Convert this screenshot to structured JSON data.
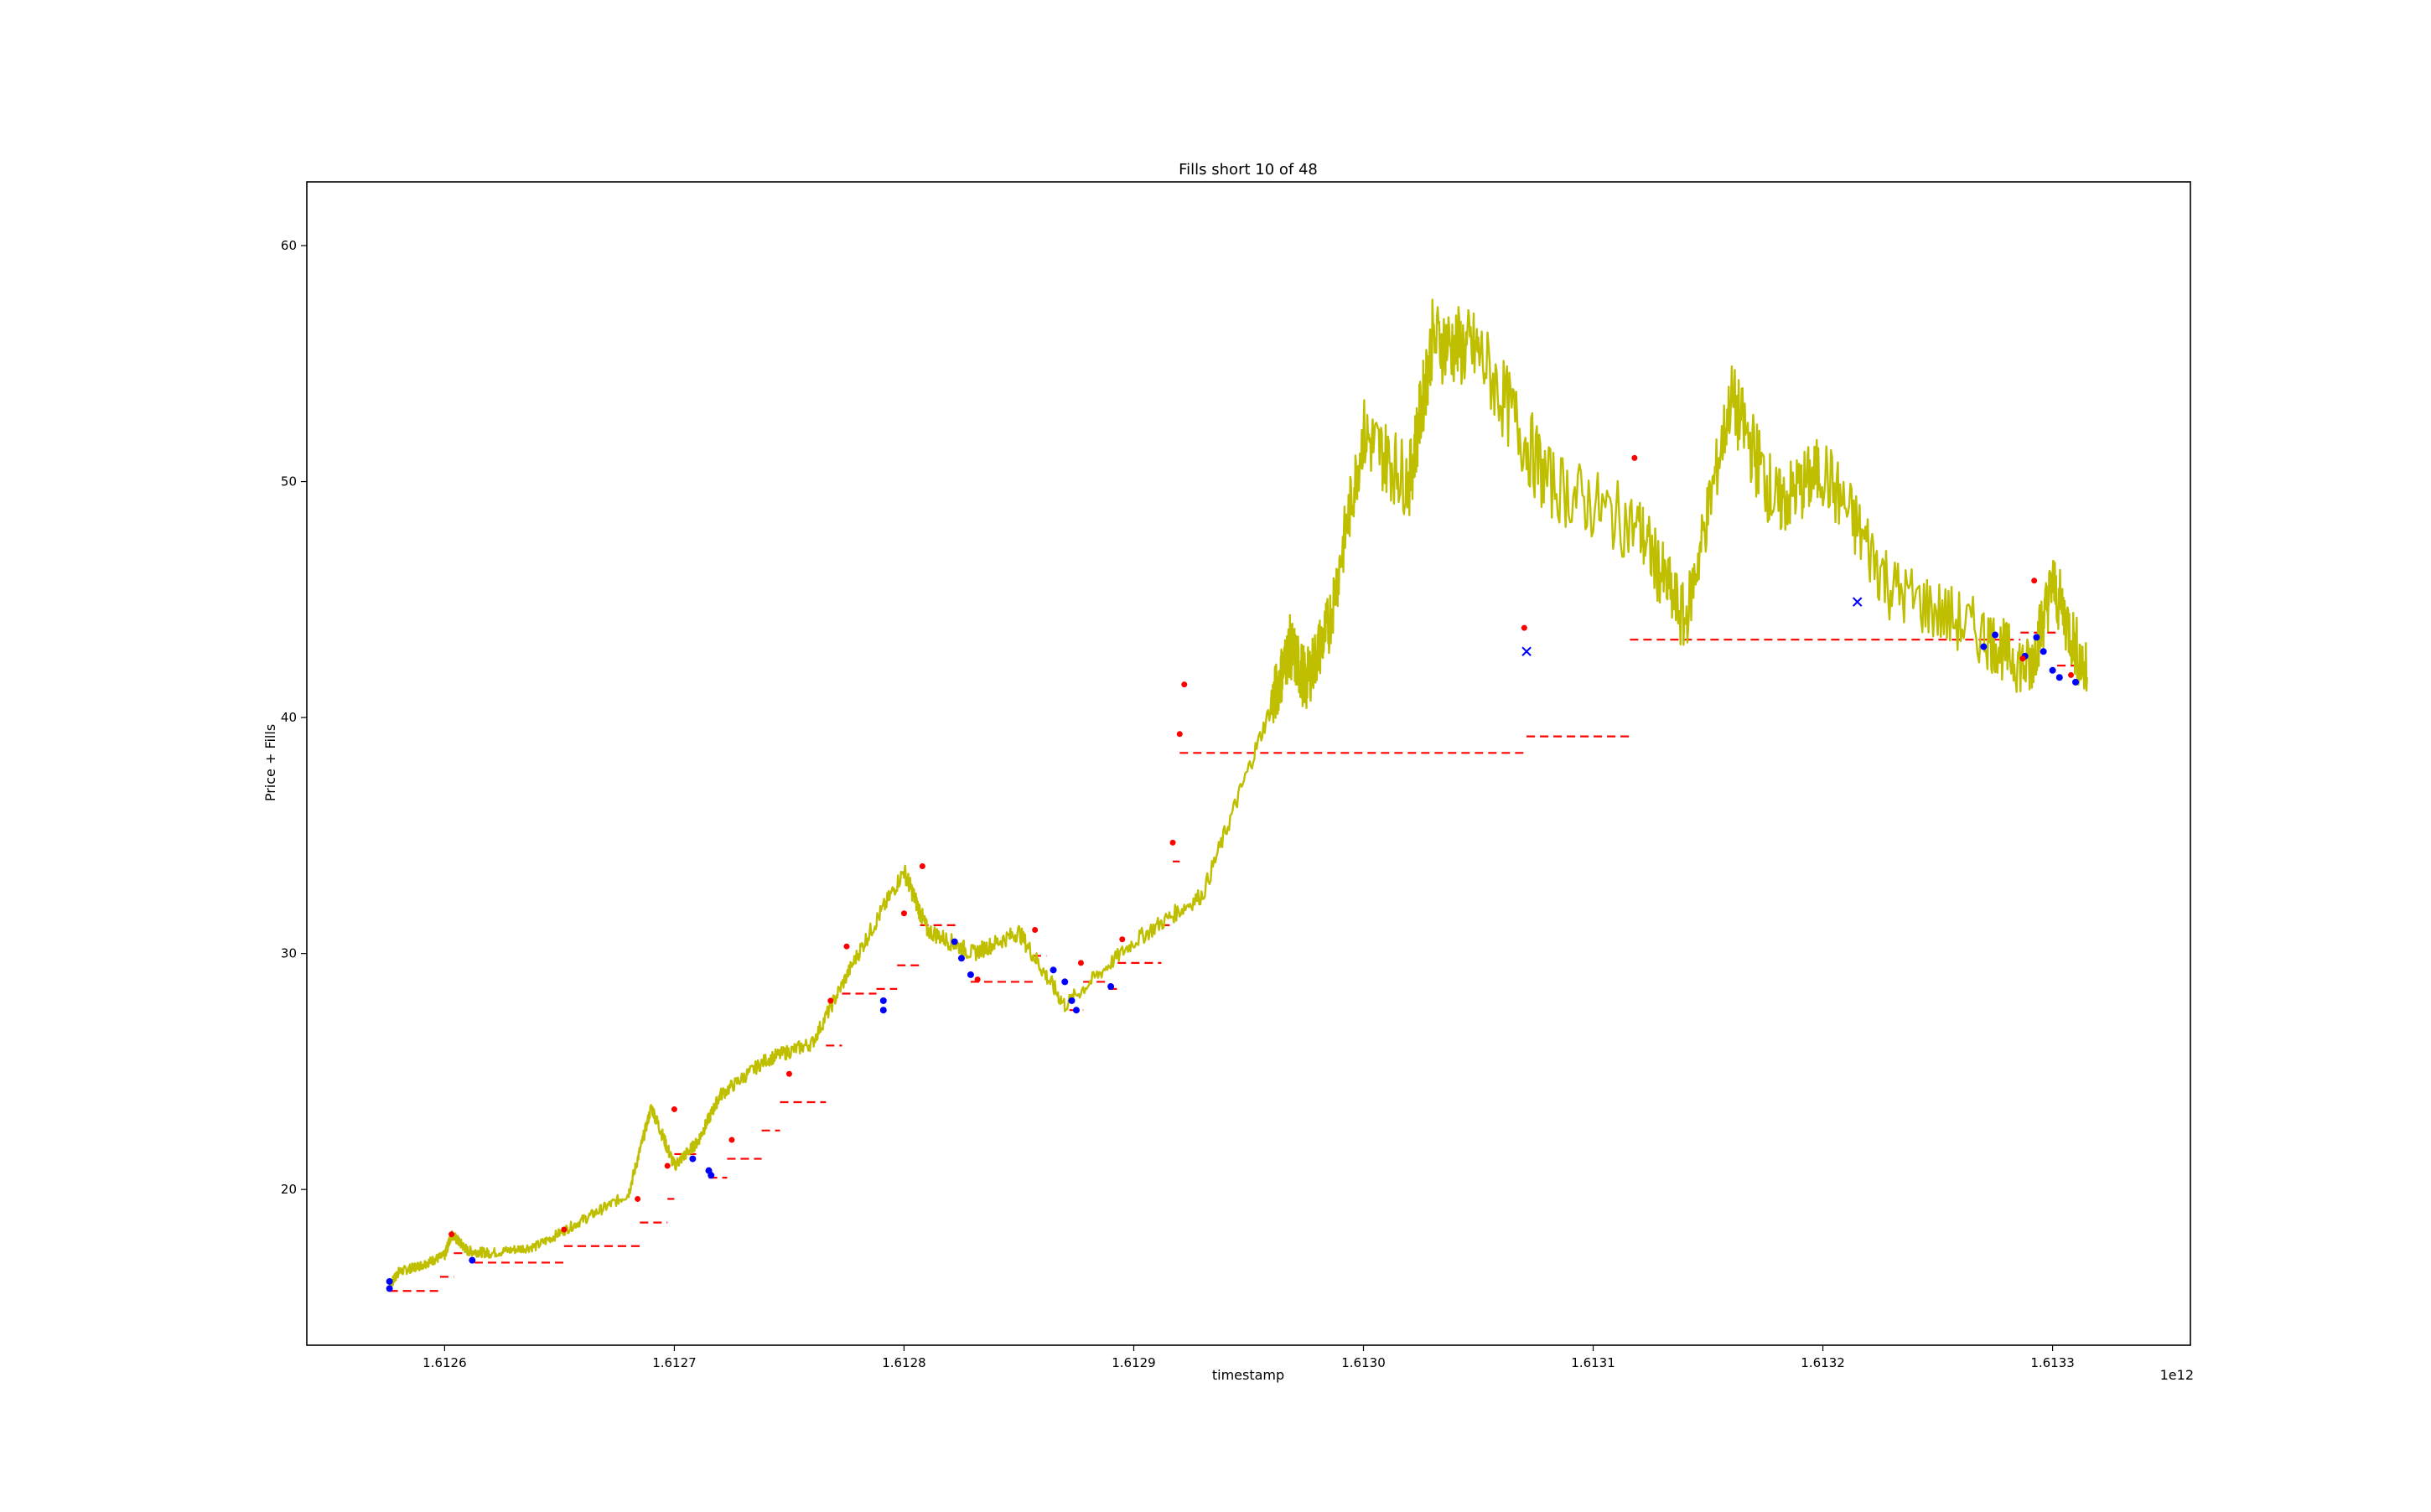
{
  "chart_data": {
    "type": "line",
    "title": "Fills short 10 of 48",
    "xlabel": "timestamp",
    "ylabel": "Price + Fills",
    "x_offset_label": "1e12",
    "x_scale": 1000000000000.0,
    "xlim": [
      1612540000000.0,
      1613360000000.0
    ],
    "ylim": [
      13.4,
      62.7
    ],
    "grid": false,
    "legend": "none",
    "x_ticks": [
      {
        "value": 1612600000000.0,
        "label": "1.6126"
      },
      {
        "value": 1612700000000.0,
        "label": "1.6127"
      },
      {
        "value": 1612800000000.0,
        "label": "1.6128"
      },
      {
        "value": 1612900000000.0,
        "label": "1.6129"
      },
      {
        "value": 1613000000000.0,
        "label": "1.6130"
      },
      {
        "value": 1613100000000.0,
        "label": "1.6131"
      },
      {
        "value": 1613200000000.0,
        "label": "1.6132"
      },
      {
        "value": 1613300000000.0,
        "label": "1.6133"
      }
    ],
    "y_ticks": [
      {
        "value": 20,
        "label": "20"
      },
      {
        "value": 30,
        "label": "30"
      },
      {
        "value": 40,
        "label": "40"
      },
      {
        "value": 50,
        "label": "50"
      },
      {
        "value": 60,
        "label": "60"
      }
    ],
    "colors": {
      "price": "#bfbf00",
      "position_price": "#ff0000",
      "entry_fill": "#0000ff",
      "close_fill": "#ff0000"
    },
    "series": [
      {
        "kind": "price",
        "x": [
          1612576000000.0,
          1612580000000.0,
          1612590000000.0,
          1612600000000.0,
          1612603000000.0,
          1612610000000.0,
          1612620000000.0,
          1612640000000.0,
          1612660000000.0,
          1612680000000.0,
          1612690000000.0,
          1612700000000.0,
          1612710000000.0,
          1612720000000.0,
          1612740000000.0,
          1612760000000.0,
          1612780000000.0,
          1612800000000.0,
          1612810000000.0,
          1612830000000.0,
          1612850000000.0,
          1612870000000.0,
          1612900000000.0,
          1612930000000.0,
          1612960000000.0,
          1612968000000.0,
          1612975000000.0,
          1612985000000.0,
          1613000000000.0,
          1613020000000.0,
          1613030000000.0,
          1613050000000.0,
          1613080000000.0,
          1613120000000.0,
          1613140000000.0,
          1613160000000.0,
          1613180000000.0,
          1613200000000.0,
          1613230000000.0,
          1613270000000.0,
          1613290000000.0,
          1613300000000.0,
          1613315000000.0
        ],
        "y": [
          15.9,
          16.5,
          16.8,
          17.2,
          18.1,
          17.4,
          17.3,
          17.6,
          18.7,
          19.8,
          23.5,
          21.0,
          22.0,
          24.0,
          25.5,
          26.2,
          30.0,
          33.5,
          31.0,
          30.0,
          30.9,
          27.8,
          30.5,
          32.5,
          40.5,
          43.0,
          41.5,
          44.0,
          52.0,
          50.0,
          56.0,
          55.5,
          50.0,
          48.0,
          44.0,
          53.5,
          49.0,
          50.5,
          45.5,
          43.5,
          42.0,
          45.7,
          41.7
        ]
      },
      {
        "kind": "position_price",
        "segments": [
          {
            "x0": 1612576000000.0,
            "x1": 1612598000000.0,
            "y": 15.7
          },
          {
            "x0": 1612598000000.0,
            "x1": 1612604000000.0,
            "y": 16.3
          },
          {
            "x0": 1612604000000.0,
            "x1": 1612613000000.0,
            "y": 17.3
          },
          {
            "x0": 1612613000000.0,
            "x1": 1612652000000.0,
            "y": 16.9
          },
          {
            "x0": 1612652000000.0,
            "x1": 1612685000000.0,
            "y": 17.6
          },
          {
            "x0": 1612685000000.0,
            "x1": 1612697000000.0,
            "y": 18.6
          },
          {
            "x0": 1612697000000.0,
            "x1": 1612700000000.0,
            "y": 19.6
          },
          {
            "x0": 1612700000000.0,
            "x1": 1612710000000.0,
            "y": 21.5
          },
          {
            "x0": 1612715000000.0,
            "x1": 1612723000000.0,
            "y": 20.5
          },
          {
            "x0": 1612723000000.0,
            "x1": 1612738000000.0,
            "y": 21.3
          },
          {
            "x0": 1612738000000.0,
            "x1": 1612746000000.0,
            "y": 22.5
          },
          {
            "x0": 1612746000000.0,
            "x1": 1612766000000.0,
            "y": 23.7
          },
          {
            "x0": 1612766000000.0,
            "x1": 1612773000000.0,
            "y": 26.1
          },
          {
            "x0": 1612773000000.0,
            "x1": 1612788000000.0,
            "y": 28.3
          },
          {
            "x0": 1612788000000.0,
            "x1": 1612797000000.0,
            "y": 28.5
          },
          {
            "x0": 1612797000000.0,
            "x1": 1612807000000.0,
            "y": 29.5
          },
          {
            "x0": 1612807000000.0,
            "x1": 1612823000000.0,
            "y": 31.2
          },
          {
            "x0": 1612829000000.0,
            "x1": 1612856000000.0,
            "y": 28.8
          },
          {
            "x0": 1612856000000.0,
            "x1": 1612862000000.0,
            "y": 29.9
          },
          {
            "x0": 1612872000000.0,
            "x1": 1612878000000.0,
            "y": 27.6
          },
          {
            "x0": 1612878000000.0,
            "x1": 1612889000000.0,
            "y": 28.8
          },
          {
            "x0": 1612889000000.0,
            "x1": 1612893000000.0,
            "y": 28.5
          },
          {
            "x0": 1612893000000.0,
            "x1": 1612912000000.0,
            "y": 29.6
          },
          {
            "x0": 1612912000000.0,
            "x1": 1612917000000.0,
            "y": 31.2
          },
          {
            "x0": 1612917000000.0,
            "x1": 1612920000000.0,
            "y": 33.9
          },
          {
            "x0": 1612920000000.0,
            "x1": 1613070000000.0,
            "y": 38.5
          },
          {
            "x0": 1613071000000.0,
            "x1": 1613116000000.0,
            "y": 39.2
          },
          {
            "x0": 1613116000000.0,
            "x1": 1613286000000.0,
            "y": 43.3
          },
          {
            "x0": 1613286000000.0,
            "x1": 1613302000000.0,
            "y": 43.6
          },
          {
            "x0": 1613302000000.0,
            "x1": 1613315000000.0,
            "y": 42.2
          }
        ]
      },
      {
        "kind": "entry_fill",
        "points": [
          [
            1612576000000.0,
            15.8
          ],
          [
            1612576000000.0,
            16.1
          ],
          [
            1612612000000.0,
            17.0
          ],
          [
            1612708000000.0,
            21.3
          ],
          [
            1612715000000.0,
            20.8
          ],
          [
            1612716000000.0,
            20.6
          ],
          [
            1612791000000.0,
            27.6
          ],
          [
            1612791000000.0,
            28.0
          ],
          [
            1612822000000.0,
            30.5
          ],
          [
            1612825000000.0,
            29.8
          ],
          [
            1612829000000.0,
            29.1
          ],
          [
            1612865000000.0,
            29.3
          ],
          [
            1612870000000.0,
            28.8
          ],
          [
            1612873000000.0,
            28.0
          ],
          [
            1612875000000.0,
            27.6
          ],
          [
            1612890000000.0,
            28.6
          ],
          [
            1613270000000.0,
            43.0
          ],
          [
            1613275000000.0,
            43.5
          ],
          [
            1613288000000.0,
            42.6
          ],
          [
            1613293000000.0,
            43.4
          ],
          [
            1613296000000.0,
            42.8
          ],
          [
            1613300000000.0,
            42.0
          ],
          [
            1613303000000.0,
            41.7
          ],
          [
            1613310000000.0,
            41.5
          ]
        ]
      },
      {
        "kind": "close_fill",
        "points": [
          [
            1612603000000.0,
            18.1
          ],
          [
            1612652000000.0,
            18.3
          ],
          [
            1612684000000.0,
            19.6
          ],
          [
            1612697000000.0,
            21.0
          ],
          [
            1612700000000.0,
            23.4
          ],
          [
            1612725000000.0,
            22.1
          ],
          [
            1612750000000.0,
            24.9
          ],
          [
            1612768000000.0,
            28.0
          ],
          [
            1612775000000.0,
            30.3
          ],
          [
            1612800000000.0,
            31.7
          ],
          [
            1612808000000.0,
            33.7
          ],
          [
            1612832000000.0,
            28.9
          ],
          [
            1612857000000.0,
            31.0
          ],
          [
            1612877000000.0,
            29.6
          ],
          [
            1612895000000.0,
            30.6
          ],
          [
            1612917000000.0,
            34.7
          ],
          [
            1612920000000.0,
            39.3
          ],
          [
            1612922000000.0,
            41.4
          ],
          [
            1613070000000.0,
            43.8
          ],
          [
            1613118000000.0,
            51.0
          ],
          [
            1613287000000.0,
            42.5
          ],
          [
            1613292000000.0,
            45.8
          ],
          [
            1613308000000.0,
            41.8
          ]
        ]
      },
      {
        "kind": "entry_cross",
        "points": [
          [
            1613071000000.0,
            42.8
          ],
          [
            1613215000000.0,
            44.9
          ]
        ]
      }
    ]
  }
}
